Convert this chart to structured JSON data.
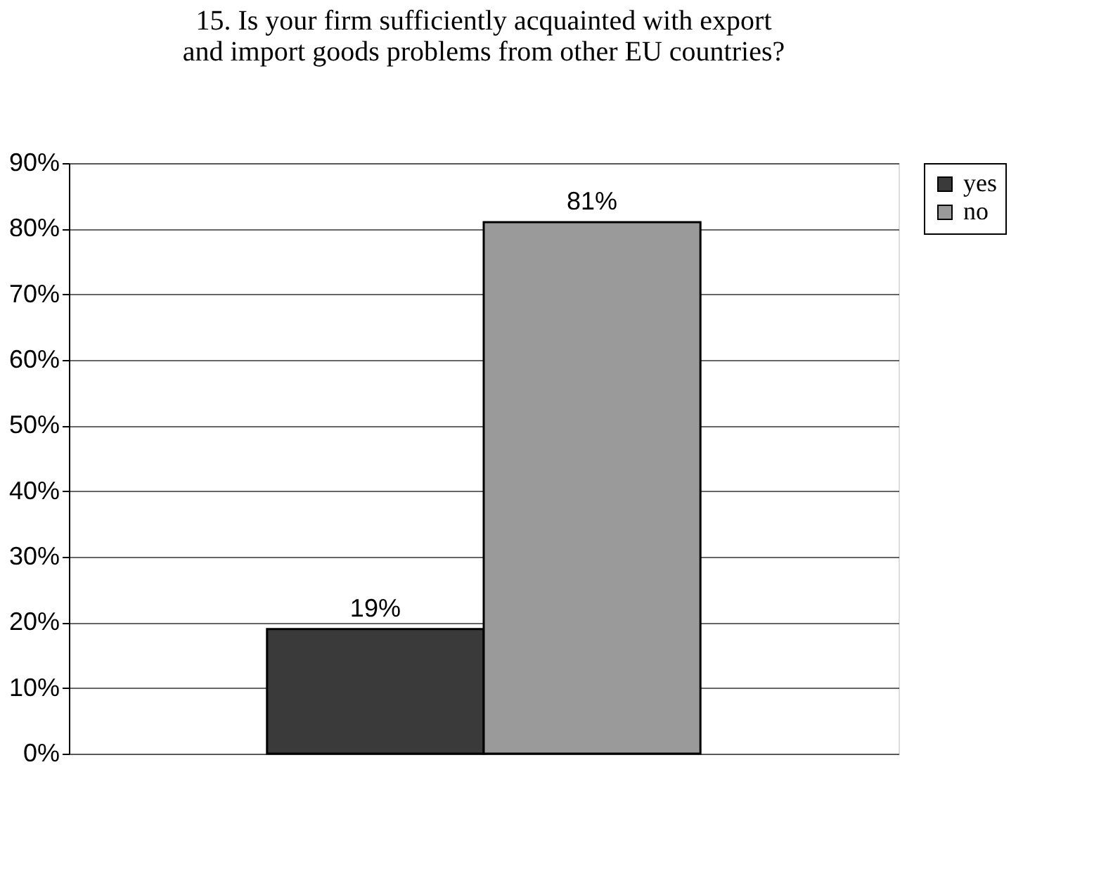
{
  "chart_data": {
    "type": "bar",
    "title": [
      "15. Is your firm sufficiently acquainted with export",
      "and import goods problems from other EU countries?"
    ],
    "categories": [
      null
    ],
    "series": [
      {
        "name": "yes",
        "color": "#3a3a3a",
        "values": [
          19
        ],
        "value_labels": [
          "19%"
        ]
      },
      {
        "name": "no",
        "color": "#9a9a9a",
        "values": [
          81
        ],
        "value_labels": [
          "81%"
        ]
      }
    ],
    "ylim": [
      0,
      90
    ],
    "yticks": [
      {
        "value": 0,
        "label": "0%"
      },
      {
        "value": 10,
        "label": "10%"
      },
      {
        "value": 20,
        "label": "20%"
      },
      {
        "value": 30,
        "label": "30%"
      },
      {
        "value": 40,
        "label": "40%"
      },
      {
        "value": 50,
        "label": "50%"
      },
      {
        "value": 60,
        "label": "60%"
      },
      {
        "value": 70,
        "label": "70%"
      },
      {
        "value": 80,
        "label": "80%"
      },
      {
        "value": 90,
        "label": "90%"
      }
    ],
    "grid": "y",
    "legend": "right"
  }
}
